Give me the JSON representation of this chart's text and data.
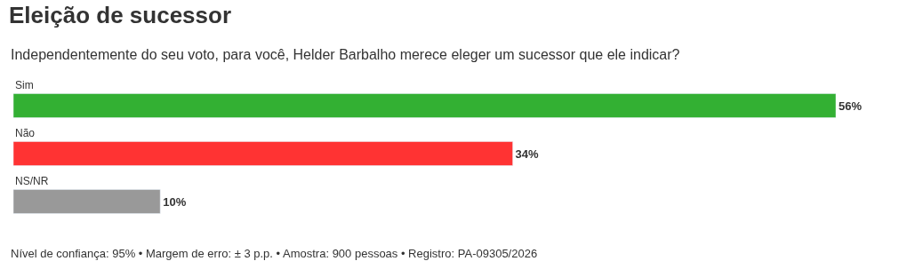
{
  "chart_data": {
    "type": "bar",
    "orientation": "horizontal",
    "title": "Eleição de sucessor",
    "subtitle": "Independentemente do seu voto, para você, Helder Barbalho merece eleger um sucessor que ele indicar?",
    "categories": [
      "Sim",
      "Não",
      "NS/NR"
    ],
    "values": [
      56,
      34,
      10
    ],
    "colors": [
      "#33b033",
      "#ff3333",
      "#999999"
    ],
    "value_labels": [
      "56%",
      "34%",
      "10%"
    ],
    "annotations": [
      "Nível de confiança: 95% • Margem de erro: ± 3 p.p. • Amostra: 900 pessoas • Registro: PA-09305/2026"
    ]
  }
}
